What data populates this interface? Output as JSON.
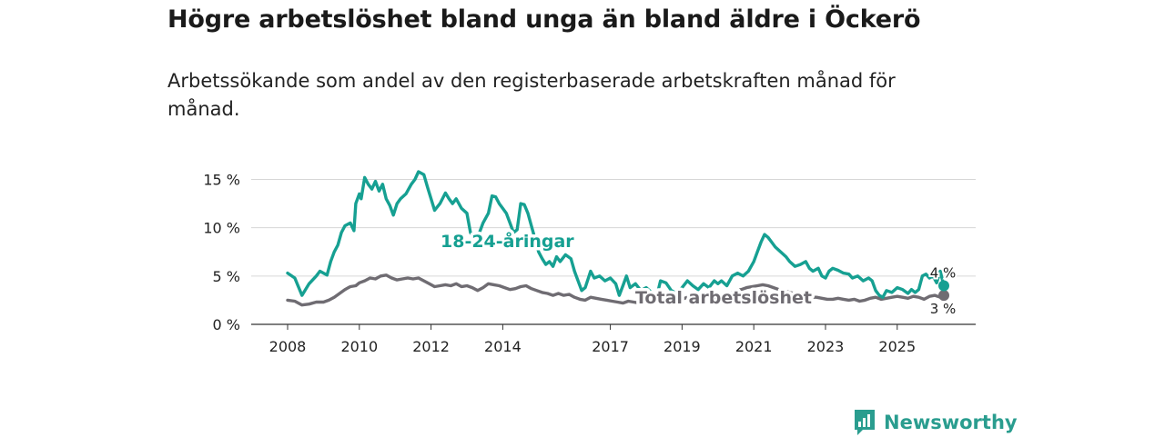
{
  "title": "Högre arbetslöshet bland unga än bland äldre i Öckerö",
  "subtitle": "Arbetssökande som andel av den registerbaserade arbetskraften månad för månad.",
  "brand": {
    "name": "Newsworthy",
    "color": "#2a9d8f"
  },
  "chart_data": {
    "type": "line",
    "ylim": [
      0,
      16
    ],
    "xlim": [
      2008,
      2026.3
    ],
    "y_ticks": [
      {
        "value": 0,
        "label": "0 %"
      },
      {
        "value": 5,
        "label": "5 %"
      },
      {
        "value": 10,
        "label": "10 %"
      },
      {
        "value": 15,
        "label": "15 %"
      }
    ],
    "x_ticks": [
      {
        "value": 2008,
        "label": "2008"
      },
      {
        "value": 2010,
        "label": "2010"
      },
      {
        "value": 2012,
        "label": "2012"
      },
      {
        "value": 2014,
        "label": "2014"
      },
      {
        "value": 2017,
        "label": "2017"
      },
      {
        "value": 2019,
        "label": "2019"
      },
      {
        "value": 2021,
        "label": "2021"
      },
      {
        "value": 2023,
        "label": "2023"
      },
      {
        "value": 2025,
        "label": "2025"
      }
    ],
    "grid": true,
    "series": [
      {
        "name": "18-24-åringar",
        "color": "#16a092",
        "end_label": "4 %",
        "points": [
          [
            2008.0,
            5.3
          ],
          [
            2008.2,
            4.8
          ],
          [
            2008.4,
            3.0
          ],
          [
            2008.6,
            4.2
          ],
          [
            2008.8,
            5.0
          ],
          [
            2008.9,
            5.5
          ],
          [
            2009.1,
            5.1
          ],
          [
            2009.2,
            6.5
          ],
          [
            2009.3,
            7.5
          ],
          [
            2009.4,
            8.2
          ],
          [
            2009.5,
            9.5
          ],
          [
            2009.6,
            10.2
          ],
          [
            2009.75,
            10.5
          ],
          [
            2009.85,
            9.7
          ],
          [
            2009.9,
            12.5
          ],
          [
            2010.0,
            13.5
          ],
          [
            2010.05,
            13.0
          ],
          [
            2010.15,
            15.2
          ],
          [
            2010.25,
            14.5
          ],
          [
            2010.35,
            14.0
          ],
          [
            2010.45,
            14.8
          ],
          [
            2010.55,
            13.8
          ],
          [
            2010.65,
            14.5
          ],
          [
            2010.75,
            13.0
          ],
          [
            2010.85,
            12.3
          ],
          [
            2010.95,
            11.3
          ],
          [
            2011.05,
            12.5
          ],
          [
            2011.15,
            13.0
          ],
          [
            2011.3,
            13.5
          ],
          [
            2011.45,
            14.5
          ],
          [
            2011.55,
            15.0
          ],
          [
            2011.65,
            15.8
          ],
          [
            2011.8,
            15.5
          ],
          [
            2011.9,
            14.2
          ],
          [
            2012.0,
            13.0
          ],
          [
            2012.1,
            11.8
          ],
          [
            2012.25,
            12.5
          ],
          [
            2012.4,
            13.6
          ],
          [
            2012.5,
            13.0
          ],
          [
            2012.6,
            12.5
          ],
          [
            2012.7,
            13.0
          ],
          [
            2012.85,
            12.0
          ],
          [
            2013.0,
            11.5
          ],
          [
            2013.1,
            9.5
          ],
          [
            2013.2,
            8.8
          ],
          [
            2013.35,
            9.5
          ],
          [
            2013.45,
            10.5
          ],
          [
            2013.6,
            11.5
          ],
          [
            2013.7,
            13.3
          ],
          [
            2013.8,
            13.2
          ],
          [
            2013.9,
            12.5
          ],
          [
            2014.0,
            12.0
          ],
          [
            2014.1,
            11.5
          ],
          [
            2014.2,
            10.5
          ],
          [
            2014.3,
            9.5
          ],
          [
            2014.4,
            9.8
          ],
          [
            2014.5,
            12.5
          ],
          [
            2014.6,
            12.4
          ],
          [
            2014.7,
            11.5
          ],
          [
            2014.85,
            9.5
          ],
          [
            2015.0,
            7.5
          ],
          [
            2015.1,
            6.8
          ],
          [
            2015.2,
            6.2
          ],
          [
            2015.3,
            6.5
          ],
          [
            2015.4,
            6.0
          ],
          [
            2015.5,
            7.0
          ],
          [
            2015.6,
            6.5
          ],
          [
            2015.75,
            7.2
          ],
          [
            2015.9,
            6.8
          ],
          [
            2016.0,
            5.5
          ],
          [
            2016.1,
            4.5
          ],
          [
            2016.2,
            3.5
          ],
          [
            2016.3,
            3.8
          ],
          [
            2016.45,
            5.5
          ],
          [
            2016.55,
            4.8
          ],
          [
            2016.7,
            5.0
          ],
          [
            2016.85,
            4.5
          ],
          [
            2017.0,
            4.8
          ],
          [
            2017.15,
            4.2
          ],
          [
            2017.25,
            3.0
          ],
          [
            2017.35,
            4.0
          ],
          [
            2017.45,
            5.0
          ],
          [
            2017.55,
            3.8
          ],
          [
            2017.7,
            4.2
          ],
          [
            2017.85,
            3.5
          ],
          [
            2018.0,
            3.8
          ],
          [
            2018.15,
            3.3
          ],
          [
            2018.3,
            3.0
          ],
          [
            2018.4,
            4.5
          ],
          [
            2018.55,
            4.3
          ],
          [
            2018.7,
            3.5
          ],
          [
            2018.85,
            3.2
          ],
          [
            2019.0,
            3.8
          ],
          [
            2019.15,
            4.5
          ],
          [
            2019.3,
            4.0
          ],
          [
            2019.45,
            3.6
          ],
          [
            2019.6,
            4.2
          ],
          [
            2019.75,
            3.8
          ],
          [
            2019.9,
            4.5
          ],
          [
            2020.0,
            4.2
          ],
          [
            2020.1,
            4.5
          ],
          [
            2020.25,
            4.0
          ],
          [
            2020.4,
            5.0
          ],
          [
            2020.55,
            5.3
          ],
          [
            2020.7,
            5.0
          ],
          [
            2020.85,
            5.5
          ],
          [
            2021.0,
            6.5
          ],
          [
            2021.1,
            7.5
          ],
          [
            2021.2,
            8.5
          ],
          [
            2021.3,
            9.3
          ],
          [
            2021.4,
            9.0
          ],
          [
            2021.5,
            8.5
          ],
          [
            2021.6,
            8.0
          ],
          [
            2021.75,
            7.5
          ],
          [
            2021.9,
            7.0
          ],
          [
            2022.0,
            6.5
          ],
          [
            2022.15,
            6.0
          ],
          [
            2022.3,
            6.2
          ],
          [
            2022.45,
            6.5
          ],
          [
            2022.55,
            5.8
          ],
          [
            2022.65,
            5.5
          ],
          [
            2022.8,
            5.8
          ],
          [
            2022.9,
            5.0
          ],
          [
            2023.0,
            4.8
          ],
          [
            2023.1,
            5.5
          ],
          [
            2023.2,
            5.8
          ],
          [
            2023.35,
            5.6
          ],
          [
            2023.5,
            5.3
          ],
          [
            2023.65,
            5.2
          ],
          [
            2023.75,
            4.8
          ],
          [
            2023.9,
            5.0
          ],
          [
            2024.05,
            4.5
          ],
          [
            2024.2,
            4.8
          ],
          [
            2024.3,
            4.5
          ],
          [
            2024.4,
            3.5
          ],
          [
            2024.5,
            3.0
          ],
          [
            2024.6,
            2.8
          ],
          [
            2024.7,
            3.5
          ],
          [
            2024.85,
            3.3
          ],
          [
            2025.0,
            3.8
          ],
          [
            2025.15,
            3.6
          ],
          [
            2025.3,
            3.2
          ],
          [
            2025.4,
            3.6
          ],
          [
            2025.5,
            3.3
          ],
          [
            2025.6,
            3.6
          ],
          [
            2025.7,
            5.0
          ],
          [
            2025.8,
            5.2
          ],
          [
            2025.9,
            4.8
          ],
          [
            2026.0,
            5.0
          ],
          [
            2026.1,
            4.3
          ],
          [
            2026.2,
            5.5
          ],
          [
            2026.3,
            4.0
          ]
        ]
      },
      {
        "name": "Total arbetslöshet",
        "color": "#6f6c72",
        "end_label": "3 %",
        "points": [
          [
            2008.0,
            2.5
          ],
          [
            2008.2,
            2.4
          ],
          [
            2008.4,
            2.0
          ],
          [
            2008.6,
            2.1
          ],
          [
            2008.8,
            2.3
          ],
          [
            2009.0,
            2.3
          ],
          [
            2009.15,
            2.5
          ],
          [
            2009.3,
            2.8
          ],
          [
            2009.45,
            3.2
          ],
          [
            2009.6,
            3.6
          ],
          [
            2009.75,
            3.9
          ],
          [
            2009.9,
            4.0
          ],
          [
            2010.0,
            4.3
          ],
          [
            2010.15,
            4.5
          ],
          [
            2010.3,
            4.8
          ],
          [
            2010.45,
            4.7
          ],
          [
            2010.6,
            5.0
          ],
          [
            2010.75,
            5.1
          ],
          [
            2010.9,
            4.8
          ],
          [
            2011.05,
            4.6
          ],
          [
            2011.2,
            4.7
          ],
          [
            2011.35,
            4.8
          ],
          [
            2011.5,
            4.7
          ],
          [
            2011.65,
            4.8
          ],
          [
            2011.8,
            4.5
          ],
          [
            2011.95,
            4.2
          ],
          [
            2012.1,
            3.9
          ],
          [
            2012.25,
            4.0
          ],
          [
            2012.4,
            4.1
          ],
          [
            2012.55,
            4.0
          ],
          [
            2012.7,
            4.2
          ],
          [
            2012.85,
            3.9
          ],
          [
            2013.0,
            4.0
          ],
          [
            2013.15,
            3.8
          ],
          [
            2013.3,
            3.5
          ],
          [
            2013.45,
            3.8
          ],
          [
            2013.6,
            4.2
          ],
          [
            2013.75,
            4.1
          ],
          [
            2013.9,
            4.0
          ],
          [
            2014.05,
            3.8
          ],
          [
            2014.2,
            3.6
          ],
          [
            2014.35,
            3.7
          ],
          [
            2014.5,
            3.9
          ],
          [
            2014.65,
            4.0
          ],
          [
            2014.8,
            3.7
          ],
          [
            2014.95,
            3.5
          ],
          [
            2015.1,
            3.3
          ],
          [
            2015.25,
            3.2
          ],
          [
            2015.4,
            3.0
          ],
          [
            2015.55,
            3.2
          ],
          [
            2015.7,
            3.0
          ],
          [
            2015.85,
            3.1
          ],
          [
            2016.0,
            2.8
          ],
          [
            2016.15,
            2.6
          ],
          [
            2016.3,
            2.5
          ],
          [
            2016.45,
            2.8
          ],
          [
            2016.6,
            2.7
          ],
          [
            2016.75,
            2.6
          ],
          [
            2016.9,
            2.5
          ],
          [
            2017.05,
            2.4
          ],
          [
            2017.2,
            2.3
          ],
          [
            2017.35,
            2.2
          ],
          [
            2017.5,
            2.4
          ],
          [
            2017.65,
            2.3
          ],
          [
            2017.8,
            2.2
          ],
          [
            2017.95,
            2.3
          ],
          [
            2018.1,
            2.1
          ],
          [
            2018.25,
            2.2
          ],
          [
            2018.4,
            2.4
          ],
          [
            2018.55,
            2.5
          ],
          [
            2018.7,
            2.6
          ],
          [
            2018.85,
            2.5
          ],
          [
            2019.0,
            2.6
          ],
          [
            2019.15,
            2.8
          ],
          [
            2019.3,
            2.7
          ],
          [
            2019.45,
            2.6
          ],
          [
            2019.6,
            2.8
          ],
          [
            2019.75,
            2.9
          ],
          [
            2019.9,
            2.8
          ],
          [
            2020.05,
            3.0
          ],
          [
            2020.2,
            3.1
          ],
          [
            2020.35,
            3.2
          ],
          [
            2020.5,
            3.5
          ],
          [
            2020.65,
            3.6
          ],
          [
            2020.8,
            3.8
          ],
          [
            2020.95,
            3.9
          ],
          [
            2021.1,
            4.0
          ],
          [
            2021.25,
            4.1
          ],
          [
            2021.4,
            4.0
          ],
          [
            2021.55,
            3.8
          ],
          [
            2021.7,
            3.6
          ],
          [
            2021.85,
            3.5
          ],
          [
            2022.0,
            3.3
          ],
          [
            2022.15,
            3.2
          ],
          [
            2022.3,
            3.0
          ],
          [
            2022.45,
            2.9
          ],
          [
            2022.6,
            2.8
          ],
          [
            2022.75,
            2.8
          ],
          [
            2022.9,
            2.7
          ],
          [
            2023.05,
            2.6
          ],
          [
            2023.2,
            2.6
          ],
          [
            2023.35,
            2.7
          ],
          [
            2023.5,
            2.6
          ],
          [
            2023.65,
            2.5
          ],
          [
            2023.8,
            2.6
          ],
          [
            2023.95,
            2.4
          ],
          [
            2024.1,
            2.5
          ],
          [
            2024.25,
            2.7
          ],
          [
            2024.4,
            2.8
          ],
          [
            2024.55,
            2.6
          ],
          [
            2024.7,
            2.7
          ],
          [
            2024.85,
            2.8
          ],
          [
            2025.0,
            2.9
          ],
          [
            2025.15,
            2.8
          ],
          [
            2025.3,
            2.7
          ],
          [
            2025.45,
            2.9
          ],
          [
            2025.6,
            2.8
          ],
          [
            2025.75,
            2.6
          ],
          [
            2025.9,
            2.9
          ],
          [
            2026.05,
            3.0
          ],
          [
            2026.2,
            2.8
          ],
          [
            2026.3,
            3.0
          ]
        ]
      }
    ]
  }
}
